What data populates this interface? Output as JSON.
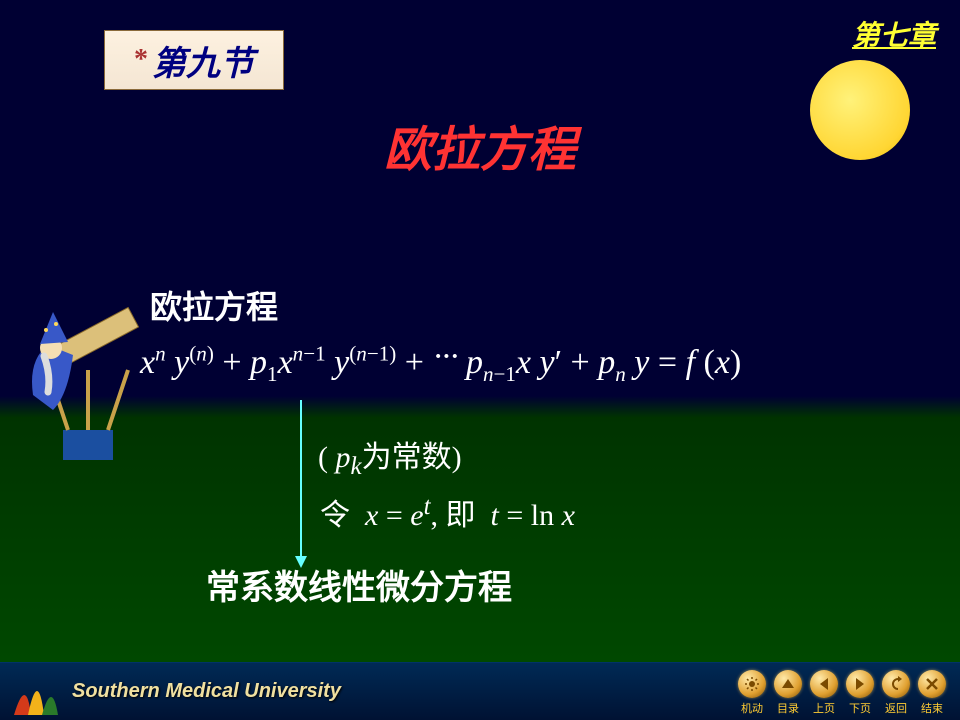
{
  "chapter_link": "第七章",
  "section_badge": {
    "asterisk": "*",
    "text": "第九节"
  },
  "title": "欧拉方程",
  "moon": {
    "color_inner": "#fff27a",
    "color_outer": "#ffd633"
  },
  "heading1": "欧拉方程",
  "equation": {
    "display": "xⁿ y⁽ⁿ⁾ + p₁ xⁿ⁻¹ y⁽ⁿ⁻¹⁾ + ··· pₙ₋₁ x y′ + pₙ y = f(x)",
    "color": "#ffffff"
  },
  "pk_note": {
    "open": "(",
    "var": "p",
    "sub": "k",
    "text": "为常数",
    "close": ")"
  },
  "substitution": {
    "let": "令",
    "eq1_lhs": "x",
    "eq1_rhs": "e",
    "eq1_sup": "t",
    "sep": ", ",
    "ie": "即",
    "eq2_lhs": "t",
    "eq2_rhs_op": "ln",
    "eq2_rhs_arg": "x"
  },
  "arrow": {
    "color": "#66ffff"
  },
  "result": "常系数线性微分方程",
  "footer": {
    "university": "Southern Medical University",
    "nav": [
      {
        "id": "auto",
        "label": "机动",
        "glyph": "sun"
      },
      {
        "id": "index",
        "label": "目录",
        "glyph": "up"
      },
      {
        "id": "prev",
        "label": "上页",
        "glyph": "left"
      },
      {
        "id": "next",
        "label": "下页",
        "glyph": "right"
      },
      {
        "id": "back",
        "label": "返回",
        "glyph": "uturn"
      },
      {
        "id": "end",
        "label": "结束",
        "glyph": "x"
      }
    ]
  },
  "colors": {
    "sky": "#000033",
    "ground": "#004d00",
    "title": "#ff3333",
    "badge_text": "#000080",
    "chapter": "#ffff33",
    "body_text": "#ffffff",
    "arrow": "#66ffff",
    "nav_label": "#ffcc33"
  }
}
